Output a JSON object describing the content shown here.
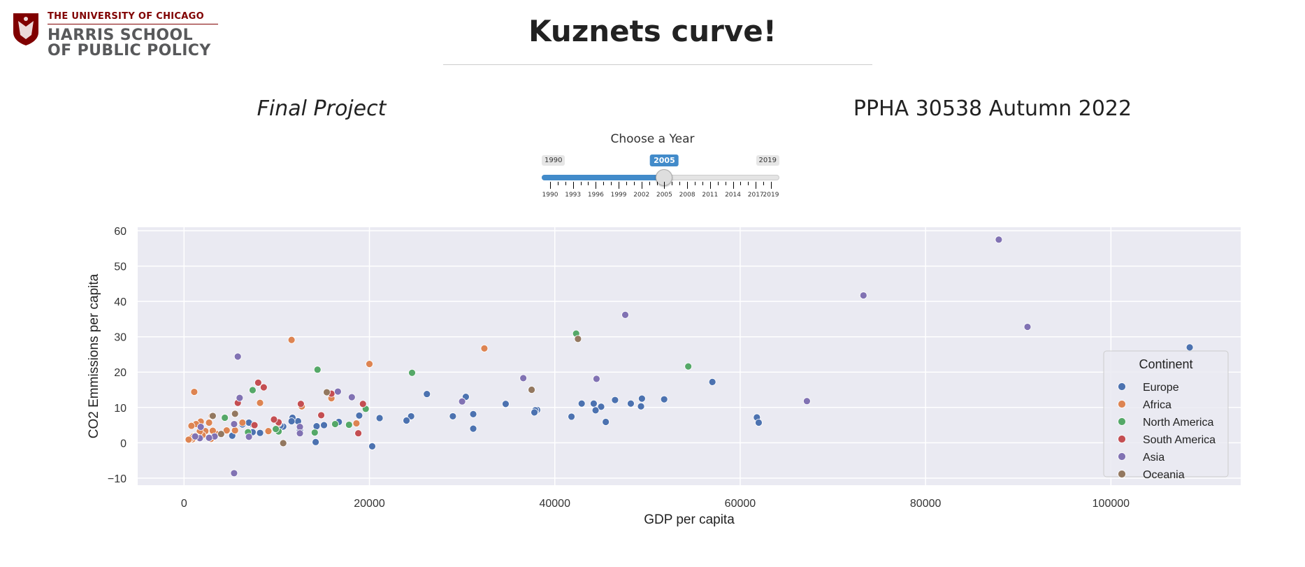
{
  "logo": {
    "line1": "THE UNIVERSITY OF CHICAGO",
    "line2": "HARRIS SCHOOL",
    "line3": "OF PUBLIC POLICY",
    "icon": "university-shield-icon",
    "color": "#800000"
  },
  "header": {
    "title": "Kuznets curve!",
    "subtitle_left": "Final Project",
    "subtitle_right": "PPHA 30538 Autumn 2022"
  },
  "slider": {
    "label": "Choose a Year",
    "min": 1990,
    "max": 2019,
    "value": 2005,
    "min_label": "1990",
    "max_label": "2019",
    "value_label": "2005",
    "tick_labels": [
      "1990",
      "1993",
      "1996",
      "1999",
      "2002",
      "2005",
      "2008",
      "2011",
      "2014",
      "2017",
      "2019"
    ],
    "accent": "#428bca"
  },
  "chart_data": {
    "type": "scatter",
    "xlabel": "GDP per capita",
    "ylabel": "CO2 Emmissions per capita",
    "xlim": [
      -5000,
      114000
    ],
    "ylim": [
      -12,
      61
    ],
    "xticks": [
      0,
      20000,
      40000,
      60000,
      80000,
      100000
    ],
    "yticks": [
      -10,
      0,
      10,
      20,
      30,
      40,
      50,
      60
    ],
    "grid": true,
    "legend": {
      "title": "Continent",
      "placement": "right"
    },
    "series": [
      {
        "name": "Europe",
        "color": "#4c72b0",
        "points": [
          [
            108500,
            27
          ],
          [
            57000,
            17.2
          ],
          [
            61800,
            7.2
          ],
          [
            62000,
            5.7
          ],
          [
            51800,
            12.3
          ],
          [
            49400,
            12.5
          ],
          [
            49300,
            10.3
          ],
          [
            48200,
            11.1
          ],
          [
            46500,
            12.1
          ],
          [
            45500,
            5.9
          ],
          [
            45000,
            10.2
          ],
          [
            44400,
            9.2
          ],
          [
            44200,
            11.1
          ],
          [
            42900,
            11.1
          ],
          [
            41800,
            7.4
          ],
          [
            38100,
            9.3
          ],
          [
            37900,
            9.2
          ],
          [
            37800,
            8.6
          ],
          [
            34700,
            11
          ],
          [
            31200,
            8.1
          ],
          [
            31200,
            4
          ],
          [
            30400,
            13
          ],
          [
            29000,
            7.5
          ],
          [
            26200,
            13.8
          ],
          [
            24500,
            7.5
          ],
          [
            24000,
            6.3
          ],
          [
            21100,
            7
          ],
          [
            20300,
            -1
          ],
          [
            18900,
            7.7
          ],
          [
            16700,
            5.9
          ],
          [
            15100,
            5
          ],
          [
            14200,
            0.2
          ],
          [
            14300,
            4.7
          ],
          [
            12500,
            3.4
          ],
          [
            12300,
            6.1
          ],
          [
            11700,
            7.1
          ],
          [
            11600,
            6.1
          ],
          [
            10700,
            4.6
          ],
          [
            10400,
            4.9
          ],
          [
            8200,
            2.8
          ],
          [
            7400,
            3
          ],
          [
            7400,
            5.2
          ],
          [
            7000,
            5.7
          ],
          [
            6300,
            5.2
          ],
          [
            5200,
            2
          ]
        ]
      },
      {
        "name": "Africa",
        "color": "#dd8452",
        "points": [
          [
            32400,
            26.7
          ],
          [
            20000,
            22.3
          ],
          [
            18600,
            5.5
          ],
          [
            15900,
            12.6
          ],
          [
            12700,
            10.3
          ],
          [
            11600,
            29.1
          ],
          [
            10200,
            5.5
          ],
          [
            9100,
            3.3
          ],
          [
            8200,
            11.3
          ],
          [
            6300,
            5.7
          ],
          [
            5500,
            3.5
          ],
          [
            4600,
            3.5
          ],
          [
            3500,
            2.5
          ],
          [
            3100,
            3.4
          ],
          [
            3000,
            7.6
          ],
          [
            2900,
            1.1
          ],
          [
            2700,
            5.7
          ],
          [
            2300,
            3.3
          ],
          [
            2000,
            2.2
          ],
          [
            1800,
            6
          ],
          [
            1700,
            3.2
          ],
          [
            1500,
            1.5
          ],
          [
            1300,
            5.3
          ],
          [
            1200,
            2
          ],
          [
            1100,
            14.4
          ],
          [
            1000,
            1.8
          ],
          [
            900,
            1
          ],
          [
            800,
            4.8
          ],
          [
            700,
            1.2
          ],
          [
            500,
            0.9
          ]
        ]
      },
      {
        "name": "North America",
        "color": "#55a868",
        "points": [
          [
            54400,
            21.6
          ],
          [
            42300,
            30.9
          ],
          [
            24600,
            19.8
          ],
          [
            19600,
            9.6
          ],
          [
            17800,
            5.1
          ],
          [
            16300,
            5.3
          ],
          [
            14400,
            20.7
          ],
          [
            14100,
            2.9
          ],
          [
            10200,
            3.2
          ],
          [
            9900,
            3.9
          ],
          [
            7400,
            14.9
          ],
          [
            6900,
            3
          ],
          [
            4400,
            7.1
          ]
        ]
      },
      {
        "name": "South America",
        "color": "#c44e52",
        "points": [
          [
            19300,
            11
          ],
          [
            18800,
            2.7
          ],
          [
            15900,
            13.9
          ],
          [
            14800,
            7.8
          ],
          [
            12600,
            11
          ],
          [
            10200,
            5.8
          ],
          [
            9700,
            6.6
          ],
          [
            8600,
            15.7
          ],
          [
            8000,
            17
          ],
          [
            7600,
            5
          ],
          [
            5800,
            11.3
          ]
        ]
      },
      {
        "name": "Asia",
        "color": "#8172b3",
        "points": [
          [
            87900,
            57.5
          ],
          [
            73300,
            41.7
          ],
          [
            91000,
            32.8
          ],
          [
            47600,
            36.2
          ],
          [
            44500,
            18.1
          ],
          [
            36600,
            18.3
          ],
          [
            30000,
            11.7
          ],
          [
            67200,
            11.8
          ],
          [
            18100,
            12.9
          ],
          [
            16600,
            14.5
          ],
          [
            12500,
            4.5
          ],
          [
            12500,
            2.7
          ],
          [
            7000,
            1.7
          ],
          [
            5800,
            24.4
          ],
          [
            6000,
            12.7
          ],
          [
            5400,
            5.3
          ],
          [
            5400,
            -8.6
          ],
          [
            4000,
            2.3
          ],
          [
            3300,
            1.8
          ],
          [
            2700,
            1.4
          ],
          [
            1700,
            1.3
          ],
          [
            1200,
            1.8
          ],
          [
            1800,
            4.5
          ]
        ]
      },
      {
        "name": "Oceania",
        "color": "#937860",
        "points": [
          [
            42500,
            29.4
          ],
          [
            37500,
            15
          ],
          [
            15400,
            14.3
          ],
          [
            10700,
            -0.1
          ],
          [
            5500,
            8.2
          ],
          [
            4000,
            2.5
          ],
          [
            3100,
            7.6
          ]
        ]
      }
    ]
  }
}
